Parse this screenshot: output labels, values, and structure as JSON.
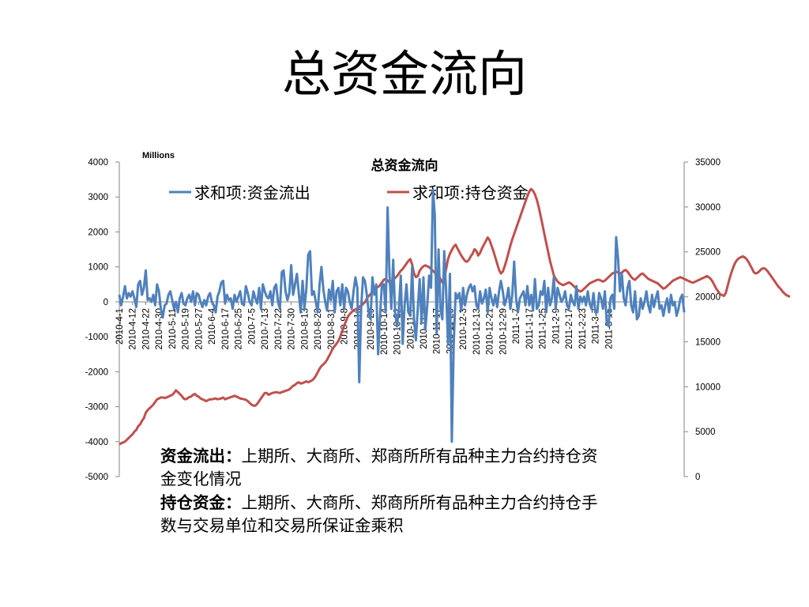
{
  "slide": {
    "title": "总资金流向"
  },
  "notes": [
    {
      "term": "资金流出：",
      "text": "上期所、大商所、郑商所所有品种主力合约持仓资金变化情况"
    },
    {
      "term": "持仓资金：",
      "text": "上期所、大商所、郑商所所有品种主力合约持仓手数与交易单位和交易所保证金乘积"
    }
  ],
  "colors": {
    "outflow": "#4F81BD",
    "holding": "#C0504D",
    "axis": "#868686"
  },
  "chart_data": {
    "type": "line",
    "title": "总资金流向",
    "unit_label": "Millions",
    "legend_position": "top",
    "grid": false,
    "left_axis": {
      "min": -5000,
      "max": 4000,
      "ticks": [
        "4000",
        "3000",
        "2000",
        "1000",
        "0",
        "-1000",
        "-2000",
        "-3000",
        "-4000",
        "-5000"
      ]
    },
    "right_axis": {
      "min": 0,
      "max": 35000,
      "ticks": [
        "35000",
        "30000",
        "25000",
        "20000",
        "15000",
        "10000",
        "5000",
        "0"
      ]
    },
    "x_tick_labels": [
      "2010-4-1",
      "2010-4-12",
      "2010-4-22",
      "2010-4-30",
      "2010-5-11",
      "2010-5-19",
      "2010-5-27",
      "2010-6-4",
      "2010-6-17",
      "2010-6-25",
      "2010-7-5",
      "2010-7-13",
      "2010-7-22",
      "2010-7-30",
      "2010-8-13",
      "2010-8-23",
      "2010-8-31",
      "2010-9-8",
      "2010-9-16",
      "2010-9-29",
      "2010-10-14",
      "2010-10-22",
      "2010-11-1",
      "2010-11-9",
      "2010-11-17",
      "2010-11-25",
      "2010-12-3",
      "2010-12-13",
      "2010-12-21",
      "2010-12-29",
      "2011-1-7",
      "2011-1-17",
      "2011-1-25",
      "2011-2-9",
      "2011-2-17",
      "2011-2-23",
      "2011-3-7",
      "2011-3-15"
    ],
    "x_tick_step": 7,
    "series": [
      {
        "name": "求和项:资金流出",
        "axis": "left",
        "values": [
          200,
          -100,
          150,
          450,
          100,
          250,
          150,
          300,
          100,
          -150,
          500,
          600,
          200,
          400,
          900,
          50,
          100,
          0,
          200,
          -100,
          500,
          300,
          -200,
          -450,
          -100,
          -50,
          200,
          300,
          50,
          -200,
          0,
          -300,
          100,
          250,
          -50,
          -100,
          100,
          200,
          0,
          300,
          -100,
          250,
          200,
          0,
          -150,
          50,
          -100,
          150,
          250,
          0,
          -100,
          -300,
          150,
          300,
          550,
          600,
          -50,
          200,
          50,
          100,
          -200,
          200,
          0,
          150,
          300,
          -50,
          -100,
          450,
          250,
          0,
          -100,
          300,
          100,
          -50,
          400,
          -200,
          500,
          300,
          150,
          100,
          300,
          -100,
          400,
          500,
          0,
          -200,
          850,
          900,
          300,
          50,
          250,
          1050,
          200,
          500,
          800,
          250,
          -300,
          600,
          -200,
          350,
          1350,
          1450,
          200,
          300,
          0,
          -300,
          500,
          1000,
          350,
          0,
          -250,
          350,
          50,
          600,
          -300,
          300,
          400,
          -100,
          500,
          -200,
          400,
          300,
          0,
          -200,
          300,
          700,
          400,
          -2300,
          -200,
          700,
          600,
          200,
          -300,
          -500,
          700,
          200,
          500,
          -1500,
          -400,
          500,
          500,
          -300,
          2700,
          800,
          -200,
          1200,
          -300,
          -700,
          -200,
          750,
          -1200,
          -100,
          500,
          -300,
          -400,
          1000,
          -500,
          -1100,
          -200,
          650,
          -600,
          700,
          -800,
          -100,
          750,
          400,
          3200,
          2500,
          -900,
          1500,
          -200,
          -500,
          1450,
          300,
          -1200,
          800,
          -4000,
          -1200,
          250,
          100,
          250,
          -250,
          400,
          -100,
          200,
          400,
          500,
          300,
          450,
          -100,
          -200,
          300,
          -50,
          100,
          350,
          -300,
          400,
          100,
          -100,
          200,
          -150,
          300,
          600,
          300,
          -100,
          100,
          400,
          -200,
          200,
          1150,
          100,
          -300,
          100,
          200,
          300,
          -100,
          450,
          -100,
          200,
          -250,
          650,
          -200,
          -100,
          300,
          200,
          600,
          -300,
          400,
          -100,
          100,
          700,
          -200,
          400,
          200,
          0,
          100,
          300,
          -100,
          -200,
          200,
          0,
          -100,
          450,
          -200,
          150,
          0,
          150,
          -100,
          300,
          -50,
          -200,
          250,
          -300,
          -300,
          250,
          100,
          -200,
          300,
          -600,
          -700,
          100,
          200,
          -200,
          1850,
          1250,
          300,
          800,
          100,
          -100,
          400,
          600,
          -100,
          -300,
          300,
          -500,
          -400,
          100,
          -200,
          0,
          300,
          -100,
          -300,
          200,
          -150,
          100,
          300,
          -200,
          -100,
          -400,
          -100,
          100,
          -300,
          200,
          -100,
          0,
          -400,
          -200,
          100,
          200,
          -300
        ]
      },
      {
        "name": "求和项:持仓资金",
        "axis": "right",
        "values": [
          3600,
          3700,
          3800,
          3900,
          4100,
          4300,
          4500,
          4700,
          5000,
          5200,
          5600,
          5800,
          6200,
          6500,
          7100,
          7400,
          7600,
          7800,
          8000,
          8300,
          8600,
          8700,
          8800,
          8800,
          8750,
          8800,
          8900,
          9000,
          9100,
          9300,
          9600,
          9400,
          9200,
          9000,
          8700,
          8600,
          8700,
          8850,
          8900,
          9100,
          9200,
          9000,
          8900,
          8700,
          8600,
          8500,
          8400,
          8500,
          8600,
          8600,
          8650,
          8700,
          8600,
          8650,
          8700,
          8800,
          8600,
          8700,
          8750,
          8850,
          8900,
          9000,
          8900,
          8800,
          8700,
          8650,
          8600,
          8550,
          8400,
          8200,
          8000,
          7900,
          7900,
          8100,
          8400,
          8700,
          9000,
          9300,
          9300,
          9100,
          9200,
          9300,
          9350,
          9400,
          9350,
          9300,
          9400,
          9450,
          9550,
          9600,
          9700,
          9900,
          10100,
          10200,
          10400,
          10500,
          10350,
          10400,
          10500,
          10600,
          10500,
          10600,
          10700,
          10900,
          11200,
          11600,
          12000,
          12300,
          12500,
          12700,
          13000,
          13400,
          13800,
          14300,
          14500,
          14800,
          15100,
          15600,
          16200,
          16800,
          17300,
          17800,
          18100,
          18300,
          18500,
          18600,
          18700,
          18900,
          19000,
          19200,
          19400,
          19800,
          20100,
          20300,
          20600,
          20800,
          21000,
          21100,
          21300,
          21600,
          21900,
          22000,
          21800,
          21600,
          21700,
          21900,
          22100,
          22300,
          22600,
          22900,
          23100,
          23400,
          23700,
          24000,
          24200,
          23600,
          22600,
          22200,
          22300,
          22900,
          23200,
          23400,
          23500,
          23400,
          23300,
          23100,
          22900,
          22700,
          22500,
          22400,
          22000,
          21600,
          22000,
          23100,
          24200,
          24800,
          25200,
          25600,
          25800,
          25400,
          25000,
          24600,
          24300,
          24000,
          23900,
          24100,
          24500,
          24800,
          25300,
          25100,
          24600,
          24900,
          25400,
          25800,
          26200,
          26600,
          26300,
          25700,
          25100,
          24400,
          23700,
          23000,
          22600,
          22800,
          23400,
          24100,
          24900,
          25700,
          26400,
          27000,
          27600,
          28200,
          28800,
          29400,
          30000,
          30600,
          31200,
          31700,
          32000,
          31800,
          31400,
          30800,
          30000,
          29000,
          28000,
          27000,
          26000,
          25000,
          24000,
          23200,
          22400,
          22000,
          21700,
          21500,
          21400,
          21300,
          21400,
          21500,
          21600,
          21500,
          21300,
          21100,
          20900,
          20700,
          20600,
          20700,
          20900,
          21100,
          21300,
          21500,
          21600,
          21700,
          21800,
          21900,
          21900,
          21800,
          21700,
          21800,
          22000,
          22200,
          22400,
          22600,
          22700,
          22800,
          22700,
          22600,
          22700,
          22900,
          23000,
          22800,
          22500,
          22200,
          22000,
          21900,
          22100,
          22300,
          22500,
          22600,
          22400,
          22200,
          22000,
          21900,
          21800,
          21700,
          21600,
          21500,
          21300,
          21100,
          20900,
          21000,
          21200,
          21400,
          21600,
          21800,
          21900,
          22000,
          22100,
          22200,
          22100,
          22000,
          21900,
          21800,
          21700,
          21600,
          21600,
          21700,
          21800,
          21900,
          22000,
          22100,
          22200,
          22300,
          22200,
          22000,
          21700,
          21300,
          20900,
          20600,
          20300,
          20200,
          20100,
          20400,
          21200,
          22000,
          22700,
          23300,
          23800,
          24100,
          24300,
          24400,
          24500,
          24400,
          24200,
          23900,
          23500,
          23100,
          22700,
          22600,
          22700,
          22900,
          23100,
          23200,
          23100,
          22900,
          22600,
          22300,
          22000,
          21700,
          21400,
          21100,
          20900,
          20600,
          20400,
          20200,
          20100,
          20000
        ]
      }
    ]
  }
}
